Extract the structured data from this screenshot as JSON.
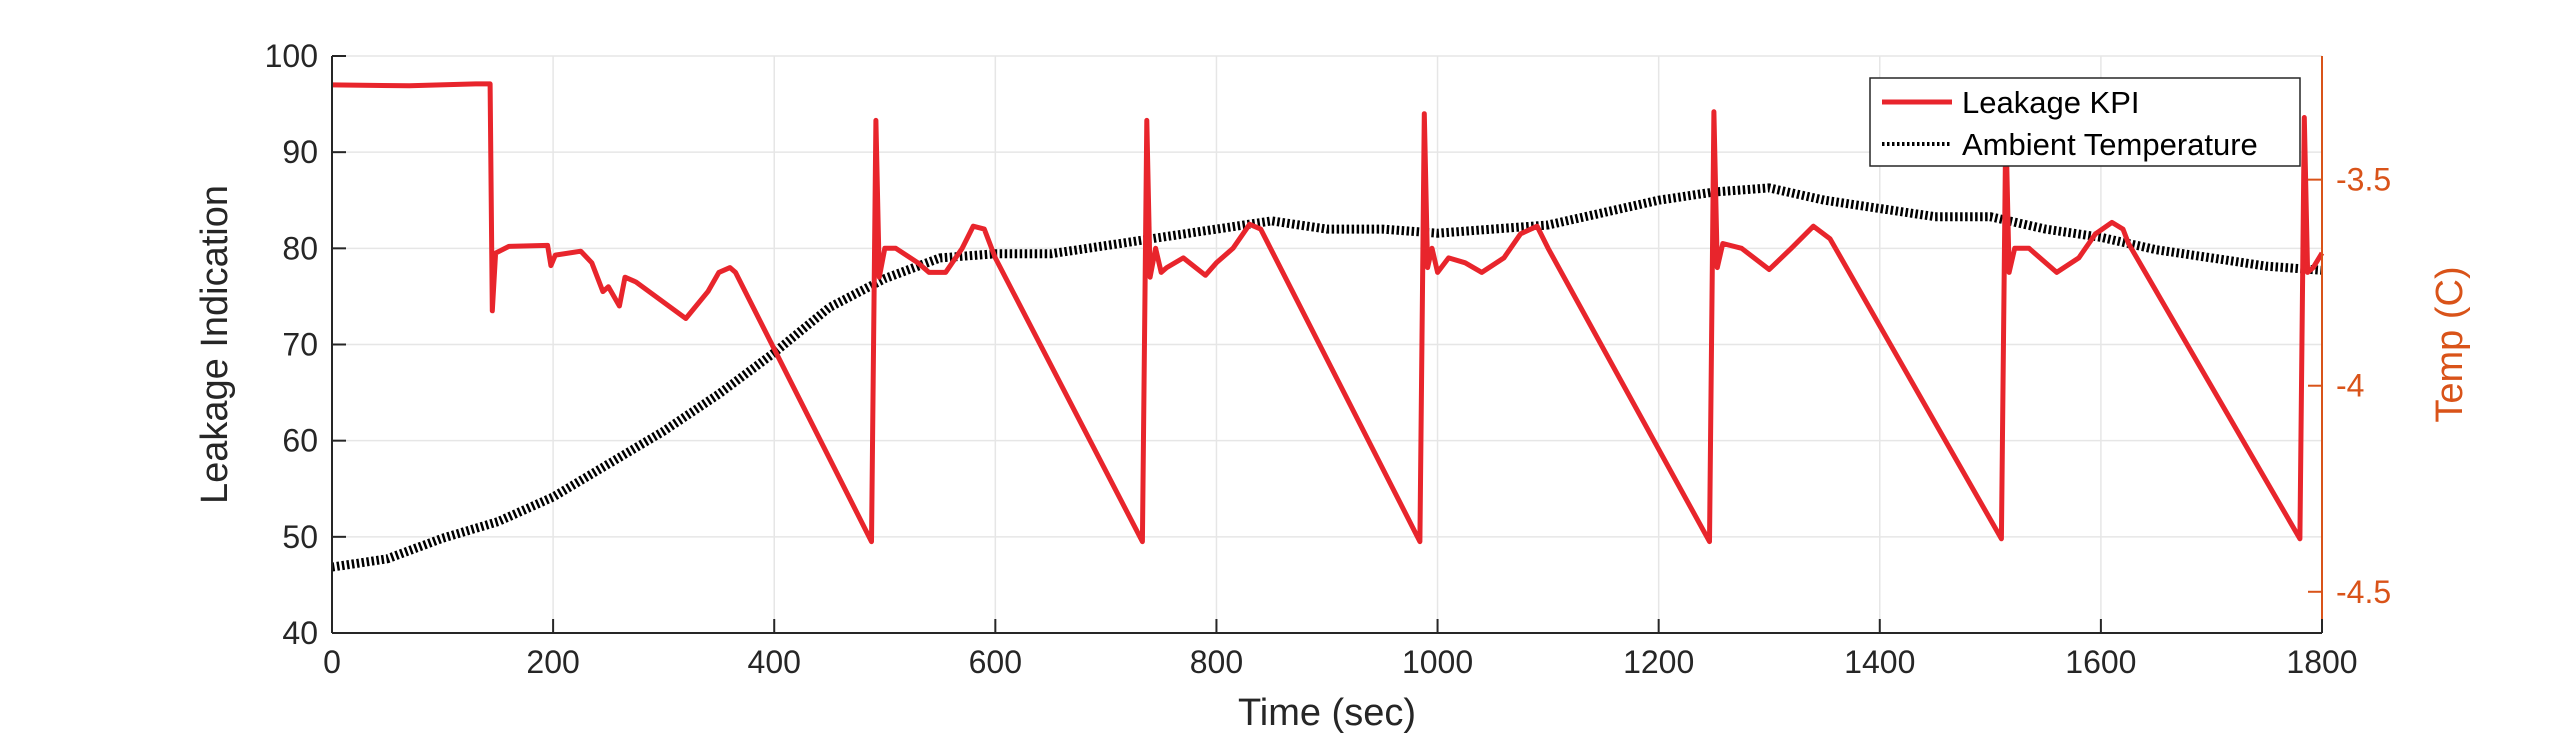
{
  "chart_data": {
    "type": "line",
    "title": "",
    "xlabel": "Time (sec)",
    "ylabel": "Leakage Indication",
    "ylabel_right": "Temp (C)",
    "xlim": [
      0,
      1800
    ],
    "ylim": [
      40,
      100
    ],
    "ylim_right": [
      -4.6,
      -3.2
    ],
    "x_ticks": [
      0,
      200,
      400,
      600,
      800,
      1000,
      1200,
      1400,
      1600,
      1800
    ],
    "y_ticks": [
      40,
      50,
      60,
      70,
      80,
      90,
      100
    ],
    "y_ticks_right": [
      -4.5,
      -4,
      -3.5
    ],
    "y_tick_labels_right": [
      "-4.5",
      "-4",
      "-3.5"
    ],
    "grid": true,
    "legend_position": "top-right",
    "colors": {
      "leakage": "#e8252c",
      "temperature": "#000000",
      "right_axis": "#d95319",
      "grid": "#e6e6e6",
      "axis": "#262626"
    },
    "series": [
      {
        "name": "Leakage KPI",
        "axis": "left",
        "style": "solid",
        "points": [
          [
            0,
            97
          ],
          [
            70,
            96.9
          ],
          [
            130,
            97.1
          ],
          [
            143,
            97.1
          ],
          [
            145,
            73.5
          ],
          [
            148,
            79.5
          ],
          [
            160,
            80.2
          ],
          [
            195,
            80.3
          ],
          [
            198,
            78.2
          ],
          [
            202,
            79.3
          ],
          [
            225,
            79.7
          ],
          [
            235,
            78.5
          ],
          [
            245,
            75.5
          ],
          [
            250,
            76
          ],
          [
            255,
            75
          ],
          [
            260,
            74
          ],
          [
            265,
            77
          ],
          [
            275,
            76.5
          ],
          [
            320,
            72.7
          ],
          [
            340,
            75.5
          ],
          [
            350,
            77.5
          ],
          [
            360,
            78
          ],
          [
            365,
            77.5
          ],
          [
            488,
            49.5
          ],
          [
            492,
            93.3
          ],
          [
            495,
            77
          ],
          [
            500,
            80
          ],
          [
            510,
            80
          ],
          [
            530,
            78.5
          ],
          [
            540,
            77.5
          ],
          [
            555,
            77.5
          ],
          [
            570,
            80
          ],
          [
            580,
            82.3
          ],
          [
            590,
            82
          ],
          [
            600,
            79
          ],
          [
            733,
            49.5
          ],
          [
            737,
            93.3
          ],
          [
            740,
            77
          ],
          [
            745,
            80
          ],
          [
            750,
            77.5
          ],
          [
            755,
            78
          ],
          [
            770,
            79
          ],
          [
            790,
            77.2
          ],
          [
            800,
            78.5
          ],
          [
            815,
            80
          ],
          [
            830,
            82.5
          ],
          [
            840,
            82
          ],
          [
            984,
            49.5
          ],
          [
            988,
            94
          ],
          [
            991,
            78
          ],
          [
            995,
            80
          ],
          [
            1000,
            77.5
          ],
          [
            1010,
            79
          ],
          [
            1025,
            78.5
          ],
          [
            1040,
            77.5
          ],
          [
            1060,
            79
          ],
          [
            1075,
            81.5
          ],
          [
            1090,
            82.3
          ],
          [
            1100,
            80
          ],
          [
            1246,
            49.5
          ],
          [
            1250,
            94.2
          ],
          [
            1253,
            78
          ],
          [
            1258,
            80.5
          ],
          [
            1275,
            80
          ],
          [
            1300,
            77.8
          ],
          [
            1320,
            80
          ],
          [
            1340,
            82.3
          ],
          [
            1355,
            81
          ],
          [
            1510,
            49.8
          ],
          [
            1514,
            93.2
          ],
          [
            1517,
            77.5
          ],
          [
            1522,
            80
          ],
          [
            1535,
            80
          ],
          [
            1560,
            77.5
          ],
          [
            1580,
            79
          ],
          [
            1595,
            81.5
          ],
          [
            1610,
            82.7
          ],
          [
            1620,
            82
          ],
          [
            1625,
            80.5
          ],
          [
            1780,
            49.8
          ],
          [
            1784,
            93.6
          ],
          [
            1787,
            77.5
          ],
          [
            1792,
            78
          ],
          [
            1800,
            79.5
          ]
        ]
      },
      {
        "name": "Ambient Temperature",
        "axis": "right",
        "style": "dotted",
        "points": [
          [
            0,
            -4.44
          ],
          [
            50,
            -4.42
          ],
          [
            100,
            -4.37
          ],
          [
            150,
            -4.33
          ],
          [
            200,
            -4.27
          ],
          [
            250,
            -4.19
          ],
          [
            300,
            -4.11
          ],
          [
            350,
            -4.02
          ],
          [
            400,
            -3.92
          ],
          [
            450,
            -3.81
          ],
          [
            500,
            -3.74
          ],
          [
            550,
            -3.69
          ],
          [
            600,
            -3.68
          ],
          [
            650,
            -3.68
          ],
          [
            700,
            -3.66
          ],
          [
            750,
            -3.64
          ],
          [
            800,
            -3.62
          ],
          [
            850,
            -3.6
          ],
          [
            900,
            -3.62
          ],
          [
            950,
            -3.62
          ],
          [
            1000,
            -3.63
          ],
          [
            1050,
            -3.62
          ],
          [
            1100,
            -3.61
          ],
          [
            1150,
            -3.58
          ],
          [
            1200,
            -3.55
          ],
          [
            1250,
            -3.53
          ],
          [
            1300,
            -3.52
          ],
          [
            1350,
            -3.55
          ],
          [
            1400,
            -3.57
          ],
          [
            1450,
            -3.59
          ],
          [
            1500,
            -3.59
          ],
          [
            1550,
            -3.62
          ],
          [
            1600,
            -3.64
          ],
          [
            1650,
            -3.67
          ],
          [
            1700,
            -3.69
          ],
          [
            1750,
            -3.71
          ],
          [
            1800,
            -3.72
          ]
        ]
      }
    ]
  }
}
